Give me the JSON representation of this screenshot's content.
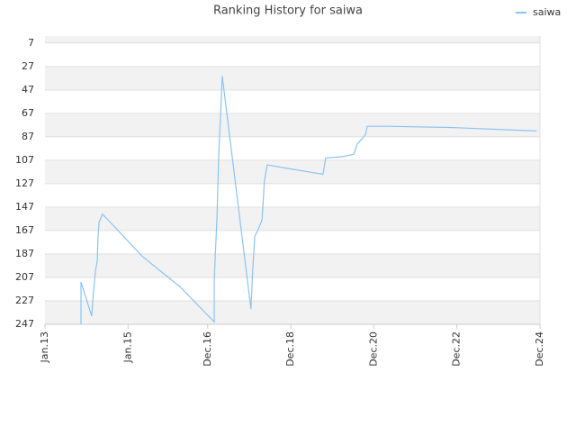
{
  "chart_data": {
    "type": "line",
    "title": "Ranking History for saiwa",
    "x": [
      10.4,
      10.4,
      13.5,
      14,
      14.6,
      15.1,
      15.3,
      15.6,
      16.6,
      19.2,
      28.1,
      39,
      48.9,
      48.9,
      49.7,
      50.2,
      50.7,
      51.2,
      51.7,
      59.5,
      60,
      60.6,
      61.6,
      62.7,
      63.4,
      64.2,
      70.2,
      80.3,
      81.1,
      85.8,
      89.2,
      90.2,
      91.5,
      92.6,
      93.1,
      98.8,
      117,
      142
    ],
    "series": [
      {
        "name": "saiwa",
        "color": "#8cc3f2",
        "values": [
          247,
          211,
          240,
          219,
          201,
          193,
          174,
          160,
          153,
          161,
          189,
          215,
          245,
          208,
          155,
          101,
          70,
          35,
          47,
          234,
          201,
          172,
          166,
          158,
          124,
          111,
          114,
          119,
          105,
          104,
          102,
          93,
          89,
          85,
          78,
          78,
          79,
          82
        ]
      }
    ],
    "xlim": [
      0,
      143
    ],
    "xticks": [
      {
        "value": 0,
        "label": "Jan.13"
      },
      {
        "value": 24,
        "label": "Jan.15"
      },
      {
        "value": 47,
        "label": "Dec.16"
      },
      {
        "value": 71,
        "label": "Dec.18"
      },
      {
        "value": 95,
        "label": "Dec.20"
      },
      {
        "value": 119,
        "label": "Dec.22"
      },
      {
        "value": 143,
        "label": "Dec.24"
      }
    ],
    "ylim": [
      247,
      1
    ],
    "yticks": [
      7,
      27,
      47,
      67,
      87,
      107,
      127,
      147,
      167,
      187,
      207,
      227,
      247
    ],
    "grid": true,
    "legend": "top-right"
  }
}
